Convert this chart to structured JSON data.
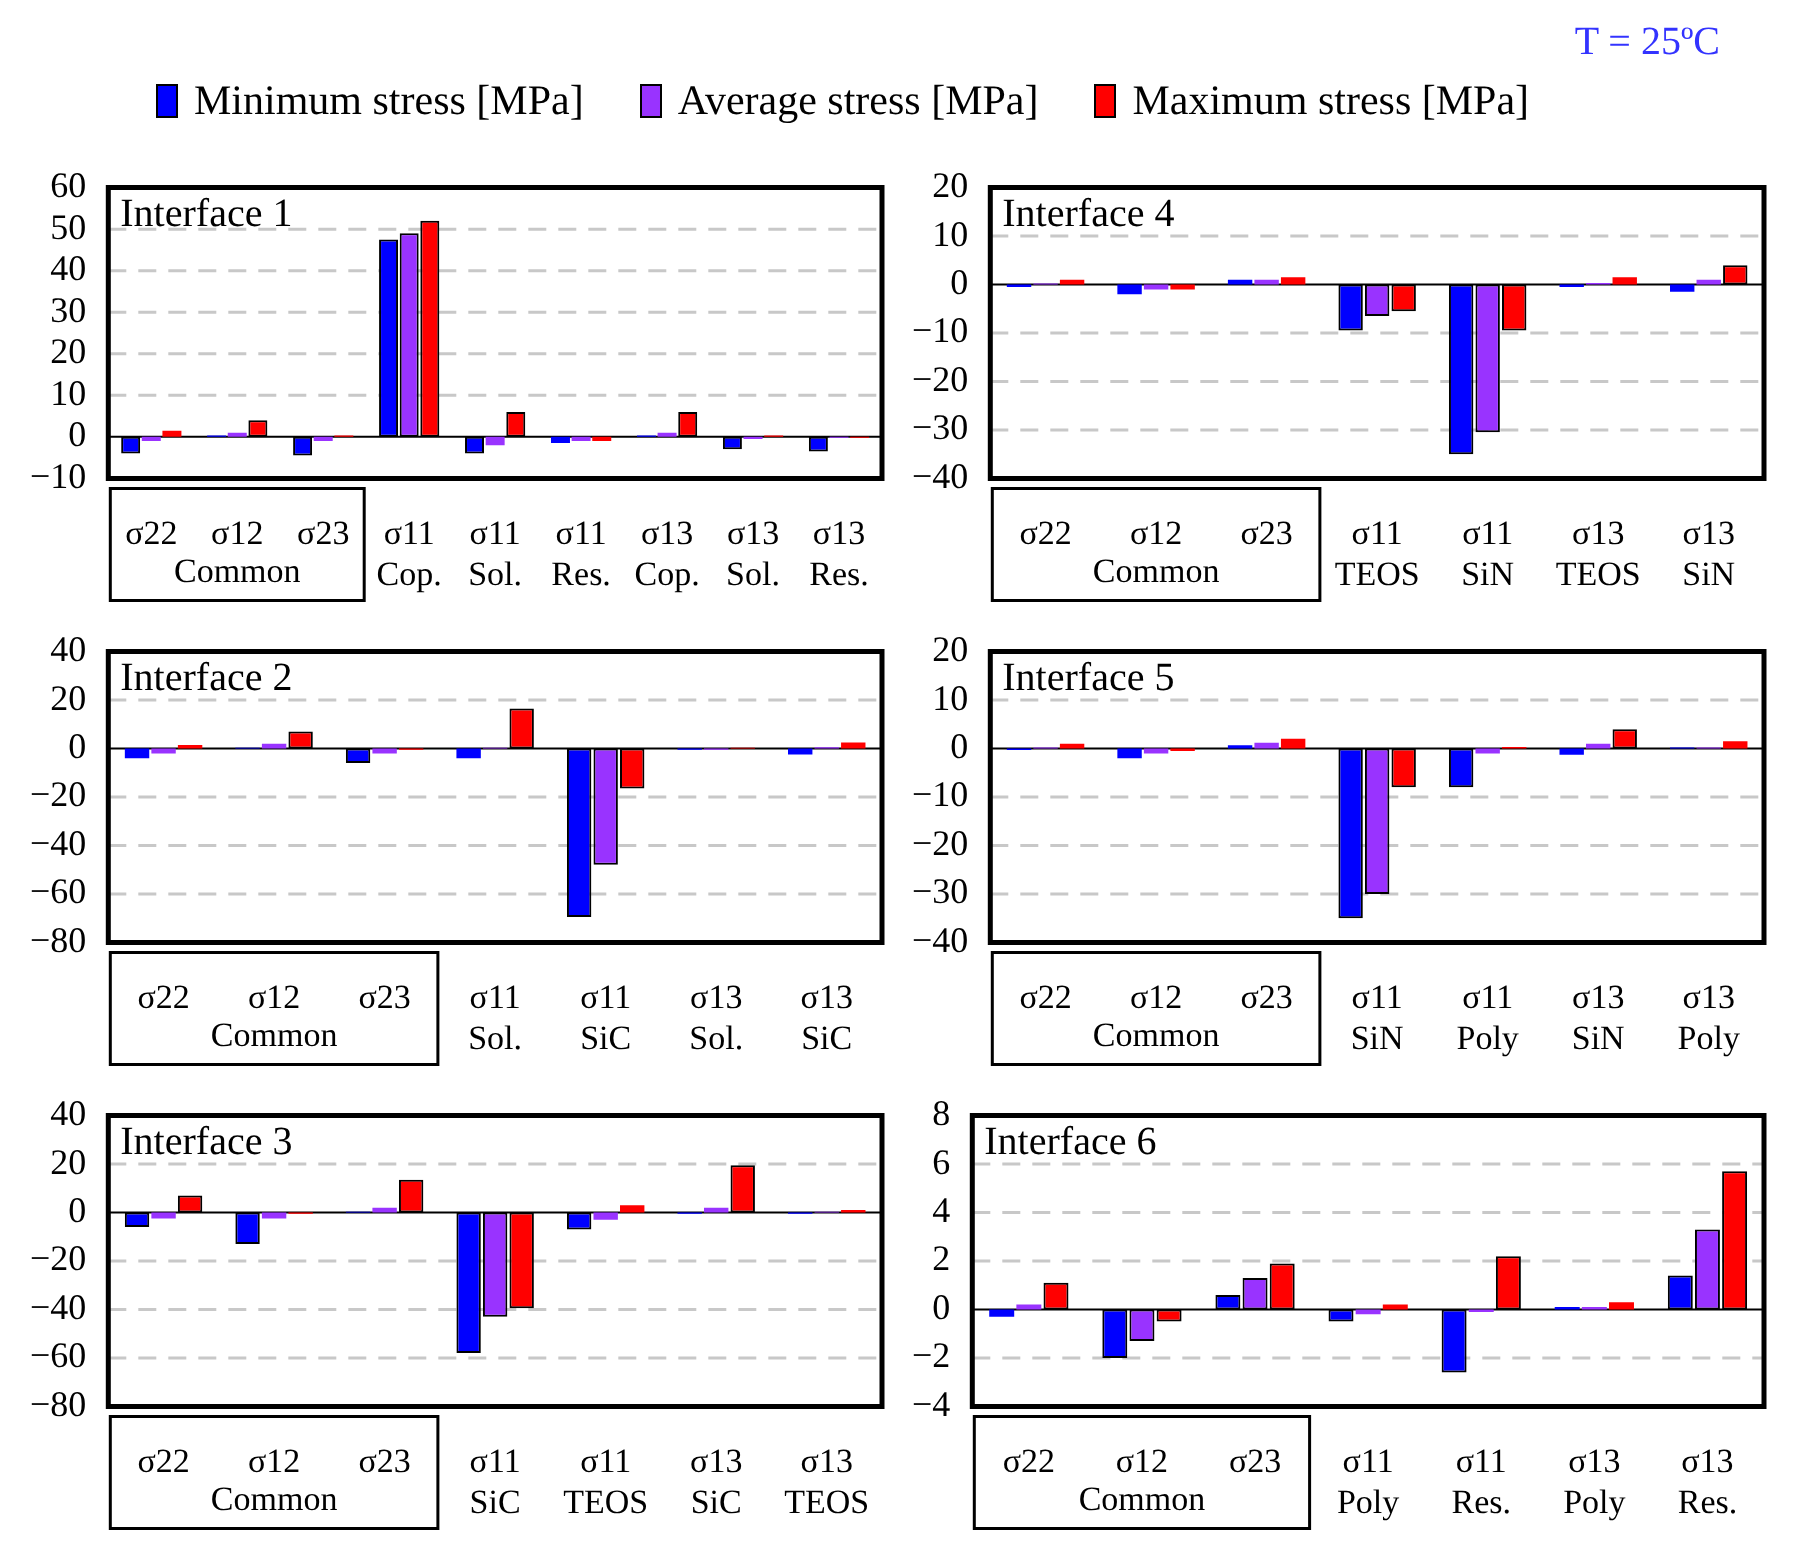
{
  "chart_data": [
    {
      "type": "bar",
      "title": "Interface 1",
      "legend": "top",
      "grid": "y",
      "annotations": [
        "Common"
      ],
      "categories": [
        "σ22",
        "σ12",
        "σ23",
        "σ11 Cop.",
        "σ11 Sol.",
        "σ11 Res.",
        "σ13 Cop.",
        "σ13 Sol.",
        "σ13 Res."
      ],
      "ylim": [
        -10,
        60
      ],
      "yticks": [
        -10,
        0,
        10,
        20,
        30,
        40,
        50,
        60
      ],
      "series": [
        {
          "name": "Minimum stress [MPa]",
          "color": "#0000ff",
          "values": [
            -4,
            0.3,
            -4.5,
            47.5,
            -4,
            -1.5,
            0.3,
            -3,
            -3.5
          ]
        },
        {
          "name": "Average stress [MPa]",
          "color": "#9933ff",
          "values": [
            -1,
            1,
            -1,
            49,
            -2,
            -1,
            1,
            -0.5,
            -0.2
          ]
        },
        {
          "name": "Maximum stress [MPa]",
          "color": "#ff0000",
          "values": [
            1.5,
            4,
            0.3,
            52,
            6,
            -1,
            6,
            0.3,
            -0.2
          ]
        }
      ]
    },
    {
      "type": "bar",
      "title": "Interface 4",
      "subtitle": "T = 25ºC",
      "grid": "y",
      "annotations": [
        "Common"
      ],
      "categories": [
        "σ22",
        "σ12",
        "σ23",
        "σ11 TEOS",
        "σ11 SiN",
        "σ13 TEOS",
        "σ13 SiN"
      ],
      "ylim": [
        -40,
        20
      ],
      "yticks": [
        -40,
        -30,
        -20,
        -10,
        0,
        10,
        20
      ],
      "series": [
        {
          "color": "#0000ff",
          "values": [
            -0.5,
            -2,
            1,
            -9.5,
            -35,
            -0.5,
            -1.5
          ]
        },
        {
          "color": "#9933ff",
          "values": [
            0.2,
            -1,
            1,
            -6.5,
            -30.5,
            0.3,
            1
          ]
        },
        {
          "color": "#ff0000",
          "values": [
            1,
            -1,
            1.5,
            -5.5,
            -9.5,
            1.5,
            4
          ]
        }
      ]
    },
    {
      "type": "bar",
      "title": "Interface 2",
      "grid": "y",
      "annotations": [
        "Common"
      ],
      "categories": [
        "σ22",
        "σ12",
        "σ23",
        "σ11 Sol.",
        "σ11 SiC",
        "σ13 Sol.",
        "σ13 SiC"
      ],
      "ylim": [
        -80,
        40
      ],
      "yticks": [
        -80,
        -60,
        -40,
        -20,
        0,
        20,
        40
      ],
      "series": [
        {
          "color": "#0000ff",
          "values": [
            -4,
            0.3,
            -6,
            -4,
            -69.5,
            -0.5,
            -2.5
          ]
        },
        {
          "color": "#9933ff",
          "values": [
            -2,
            2,
            -2,
            0.3,
            -48,
            -0.5,
            0.5
          ]
        },
        {
          "color": "#ff0000",
          "values": [
            1.5,
            7,
            -0.5,
            16.5,
            -16.5,
            0.3,
            2.5
          ]
        }
      ]
    },
    {
      "type": "bar",
      "title": "Interface 5",
      "grid": "y",
      "annotations": [
        "Common"
      ],
      "categories": [
        "σ22",
        "σ12",
        "σ23",
        "σ11 SiN",
        "σ11 Poly",
        "σ13 SiN",
        "σ13 Poly"
      ],
      "ylim": [
        -40,
        20
      ],
      "yticks": [
        -40,
        -30,
        -20,
        -10,
        0,
        10,
        20
      ],
      "series": [
        {
          "color": "#0000ff",
          "values": [
            -0.3,
            -2,
            0.7,
            -35,
            -8,
            -1.3,
            0.2
          ]
        },
        {
          "color": "#9933ff",
          "values": [
            0.2,
            -1,
            1.2,
            -30,
            -1,
            1,
            0.2
          ]
        },
        {
          "color": "#ff0000",
          "values": [
            1,
            -0.5,
            2,
            -8,
            0.3,
            4,
            1.5
          ]
        }
      ]
    },
    {
      "type": "bar",
      "title": "Interface 3",
      "grid": "y",
      "annotations": [
        "Common"
      ],
      "categories": [
        "σ22",
        "σ12",
        "σ23",
        "σ11 SiC",
        "σ11 TEOS",
        "σ13 SiC",
        "σ13 TEOS"
      ],
      "ylim": [
        -80,
        40
      ],
      "yticks": [
        -80,
        -60,
        -40,
        -20,
        0,
        20,
        40
      ],
      "series": [
        {
          "color": "#0000ff",
          "values": [
            -6,
            -13,
            0.3,
            -58,
            -7,
            -0.5,
            -0.5
          ]
        },
        {
          "color": "#9933ff",
          "values": [
            -2.5,
            -2.5,
            2,
            -43,
            -3,
            2,
            0.3
          ]
        },
        {
          "color": "#ff0000",
          "values": [
            7,
            -0.5,
            13.5,
            -39.5,
            3,
            19.5,
            1
          ]
        }
      ]
    },
    {
      "type": "bar",
      "title": "Interface 6",
      "grid": "y",
      "annotations": [
        "Common"
      ],
      "categories": [
        "σ22",
        "σ12",
        "σ23",
        "σ11 Poly",
        "σ11 Res.",
        "σ13 Poly",
        "σ13 Res."
      ],
      "ylim": [
        -4,
        8
      ],
      "yticks": [
        -4,
        -2,
        0,
        2,
        4,
        6,
        8
      ],
      "series": [
        {
          "color": "#0000ff",
          "values": [
            -0.3,
            -2,
            0.6,
            -0.5,
            -2.6,
            0.1,
            1.4
          ]
        },
        {
          "color": "#9933ff",
          "values": [
            0.2,
            -1.3,
            1.3,
            -0.2,
            -0.1,
            0.1,
            3.3
          ]
        },
        {
          "color": "#ff0000",
          "values": [
            1.1,
            -0.5,
            1.9,
            0.2,
            2.2,
            0.3,
            5.7
          ]
        }
      ]
    }
  ]
}
